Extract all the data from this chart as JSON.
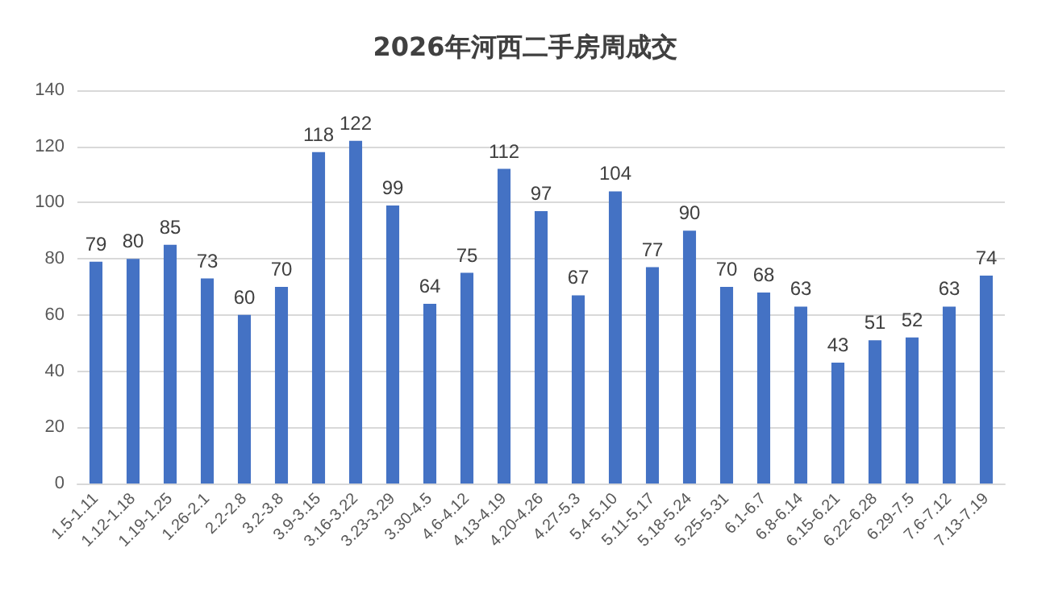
{
  "chart_data": {
    "type": "bar",
    "title": "2026年河西二手房周成交",
    "categories": [
      "1.5-1.11",
      "1.12-1.18",
      "1.19-1.25",
      "1.26-2.1",
      "2.2-2.8",
      "3.2-3.8",
      "3.9-3.15",
      "3.16-3.22",
      "3.23-3.29",
      "3.30-4.5",
      "4.6-4.12",
      "4.13-4.19",
      "4.20-4.26",
      "4.27-5.3",
      "5.4-5.10",
      "5.11-5.17",
      "5.18-5.24",
      "5.25-5.31",
      "6.1-6.7",
      "6.8-6.14",
      "6.15-6.21",
      "6.22-6.28",
      "6.29-7.5",
      "7.6-7.12",
      "7.13-7.19"
    ],
    "values": [
      79,
      80,
      85,
      73,
      60,
      70,
      118,
      122,
      99,
      64,
      75,
      112,
      97,
      67,
      104,
      77,
      90,
      70,
      68,
      63,
      43,
      51,
      52,
      63,
      74
    ],
    "color": "#4472c4",
    "ylim": [
      0,
      140
    ],
    "yticks": [
      0,
      20,
      40,
      60,
      80,
      100,
      120,
      140
    ],
    "grid": "y",
    "data_labels": true
  }
}
